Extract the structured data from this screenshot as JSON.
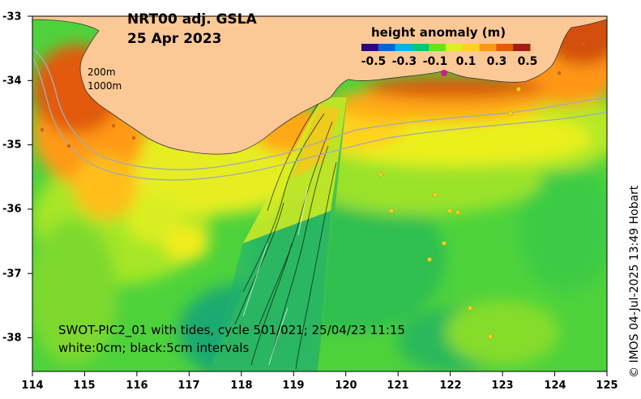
{
  "title_line1": "NRT00 adj. GSLA",
  "title_line2": "25 Apr 2023",
  "colorbar": {
    "title": "height anomaly (m)",
    "ticks": [
      "-0.5",
      "-0.3",
      "-0.1",
      "0.1",
      "0.3",
      "0.5"
    ],
    "colors": [
      "#2a0a78",
      "#0a64d0",
      "#00b4e6",
      "#00c878",
      "#64e614",
      "#dcf01e",
      "#ffd21e",
      "#ff9614",
      "#e65a0a",
      "#a01e14"
    ]
  },
  "depth_labels": [
    "200m",
    "1000m"
  ],
  "swot_caption": {
    "line1": "SWOT-PIC2_01 with tides, cycle 501/021; 25/04/23 11:15",
    "line2": "white:0cm; black:5cm intervals"
  },
  "x_axis_ticks": [
    "114",
    "115",
    "116",
    "117",
    "118",
    "119",
    "120",
    "121",
    "122",
    "123",
    "124",
    "125"
  ],
  "y_axis_ticks": [
    "-33",
    "-34",
    "-35",
    "-36",
    "-37",
    "-38"
  ],
  "credit": "© IMOS 04-Jul-2025 13:49 Hobart",
  "colors": {
    "land": "#fcc896",
    "ocean_base": "#4ed23c"
  }
}
